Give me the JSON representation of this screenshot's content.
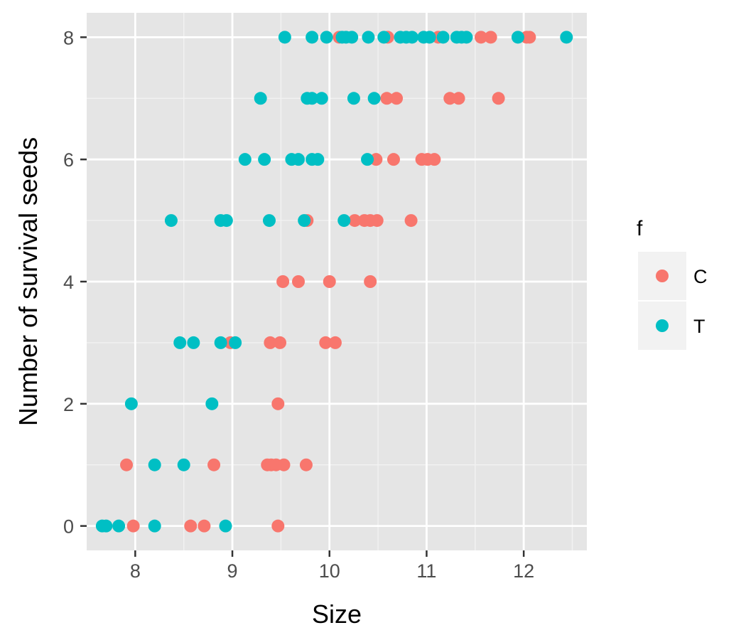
{
  "chart_data": {
    "type": "scatter",
    "title": "",
    "xlabel": "Size",
    "ylabel": "Number of survival seeds",
    "xlim": [
      7.5,
      12.65
    ],
    "ylim": [
      -0.4,
      8.4
    ],
    "xticks": [
      8,
      9,
      10,
      11,
      12
    ],
    "yticks": [
      0,
      2,
      4,
      6,
      8
    ],
    "x_tick_labels": [
      "8",
      "9",
      "10",
      "11",
      "12"
    ],
    "y_tick_labels": [
      "0",
      "2",
      "4",
      "6",
      "8"
    ],
    "grid": true,
    "background": "#e5e5e5",
    "legend": {
      "title": "f",
      "position": "right"
    },
    "series": [
      {
        "name": "C",
        "color": "#f8766d",
        "points": [
          [
            7.98,
            0
          ],
          [
            8.57,
            0
          ],
          [
            8.71,
            0
          ],
          [
            9.47,
            0
          ],
          [
            7.91,
            1
          ],
          [
            8.81,
            1
          ],
          [
            9.36,
            1
          ],
          [
            9.4,
            1
          ],
          [
            9.45,
            1
          ],
          [
            9.53,
            1
          ],
          [
            9.76,
            1
          ],
          [
            9.47,
            2
          ],
          [
            8.98,
            3
          ],
          [
            9.39,
            3
          ],
          [
            9.49,
            3
          ],
          [
            9.96,
            3
          ],
          [
            10.06,
            3
          ],
          [
            9.52,
            4
          ],
          [
            9.68,
            4
          ],
          [
            10.0,
            4
          ],
          [
            10.42,
            4
          ],
          [
            9.77,
            5
          ],
          [
            10.26,
            5
          ],
          [
            10.36,
            5
          ],
          [
            10.42,
            5
          ],
          [
            10.49,
            5
          ],
          [
            10.84,
            5
          ],
          [
            10.48,
            6
          ],
          [
            10.66,
            6
          ],
          [
            10.95,
            6
          ],
          [
            11.01,
            6
          ],
          [
            11.08,
            6
          ],
          [
            10.59,
            7
          ],
          [
            10.69,
            7
          ],
          [
            11.24,
            7
          ],
          [
            11.33,
            7
          ],
          [
            11.74,
            7
          ],
          [
            10.1,
            8
          ],
          [
            10.6,
            8
          ],
          [
            11.12,
            8
          ],
          [
            11.56,
            8
          ],
          [
            11.66,
            8
          ],
          [
            12.03,
            8
          ],
          [
            12.06,
            8
          ]
        ]
      },
      {
        "name": "T",
        "color": "#00bfc4",
        "points": [
          [
            7.66,
            0
          ],
          [
            7.7,
            0
          ],
          [
            7.83,
            0
          ],
          [
            8.2,
            0
          ],
          [
            8.93,
            0
          ],
          [
            8.2,
            1
          ],
          [
            8.5,
            1
          ],
          [
            7.96,
            2
          ],
          [
            8.79,
            2
          ],
          [
            8.46,
            3
          ],
          [
            8.6,
            3
          ],
          [
            8.88,
            3
          ],
          [
            9.03,
            3
          ],
          [
            8.37,
            5
          ],
          [
            8.88,
            5
          ],
          [
            8.94,
            5
          ],
          [
            9.38,
            5
          ],
          [
            9.74,
            5
          ],
          [
            10.15,
            5
          ],
          [
            9.13,
            6
          ],
          [
            9.33,
            6
          ],
          [
            9.61,
            6
          ],
          [
            9.68,
            6
          ],
          [
            9.82,
            6
          ],
          [
            9.88,
            6
          ],
          [
            10.39,
            6
          ],
          [
            9.29,
            7
          ],
          [
            9.77,
            7
          ],
          [
            9.82,
            7
          ],
          [
            9.92,
            7
          ],
          [
            10.25,
            7
          ],
          [
            10.46,
            7
          ],
          [
            9.54,
            8
          ],
          [
            9.82,
            8
          ],
          [
            9.97,
            8
          ],
          [
            10.13,
            8
          ],
          [
            10.17,
            8
          ],
          [
            10.23,
            8
          ],
          [
            10.4,
            8
          ],
          [
            10.56,
            8
          ],
          [
            10.73,
            8
          ],
          [
            10.79,
            8
          ],
          [
            10.85,
            8
          ],
          [
            10.97,
            8
          ],
          [
            11.03,
            8
          ],
          [
            11.17,
            8
          ],
          [
            11.31,
            8
          ],
          [
            11.36,
            8
          ],
          [
            11.41,
            8
          ],
          [
            11.94,
            8
          ],
          [
            12.44,
            8
          ]
        ]
      }
    ]
  }
}
